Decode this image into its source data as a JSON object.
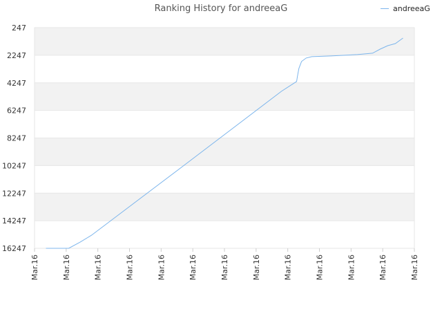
{
  "chart_data": {
    "type": "line",
    "title": "Ranking History for andreeaG",
    "xlabel": "",
    "ylabel": "",
    "y_reversed": true,
    "ylim": [
      247,
      16247
    ],
    "yticks": [
      247,
      2247,
      4247,
      6247,
      8247,
      10247,
      12247,
      14247,
      16247
    ],
    "xtick_labels": [
      "Mar.16",
      "Mar.16",
      "Mar.16",
      "Mar.16",
      "Mar.16",
      "Mar.16",
      "Mar.16",
      "Mar.16",
      "Mar.16",
      "Mar.16",
      "Mar.16",
      "Mar.16",
      "Mar.16"
    ],
    "grid": true,
    "legend": "top-right",
    "series": [
      {
        "name": "andreeaG",
        "color": "#7cb5ec",
        "x": [
          0.03,
          0.09,
          0.12,
          0.15,
          0.4,
          0.65,
          0.69,
          0.692,
          0.696,
          0.703,
          0.715,
          0.73,
          0.78,
          0.85,
          0.89,
          0.91,
          0.93,
          0.95,
          0.97
        ],
        "y": [
          16247,
          16247,
          15800,
          15300,
          10100,
          4860,
          4150,
          3800,
          3200,
          2700,
          2450,
          2350,
          2300,
          2200,
          2100,
          1800,
          1550,
          1400,
          1000
        ]
      }
    ]
  }
}
